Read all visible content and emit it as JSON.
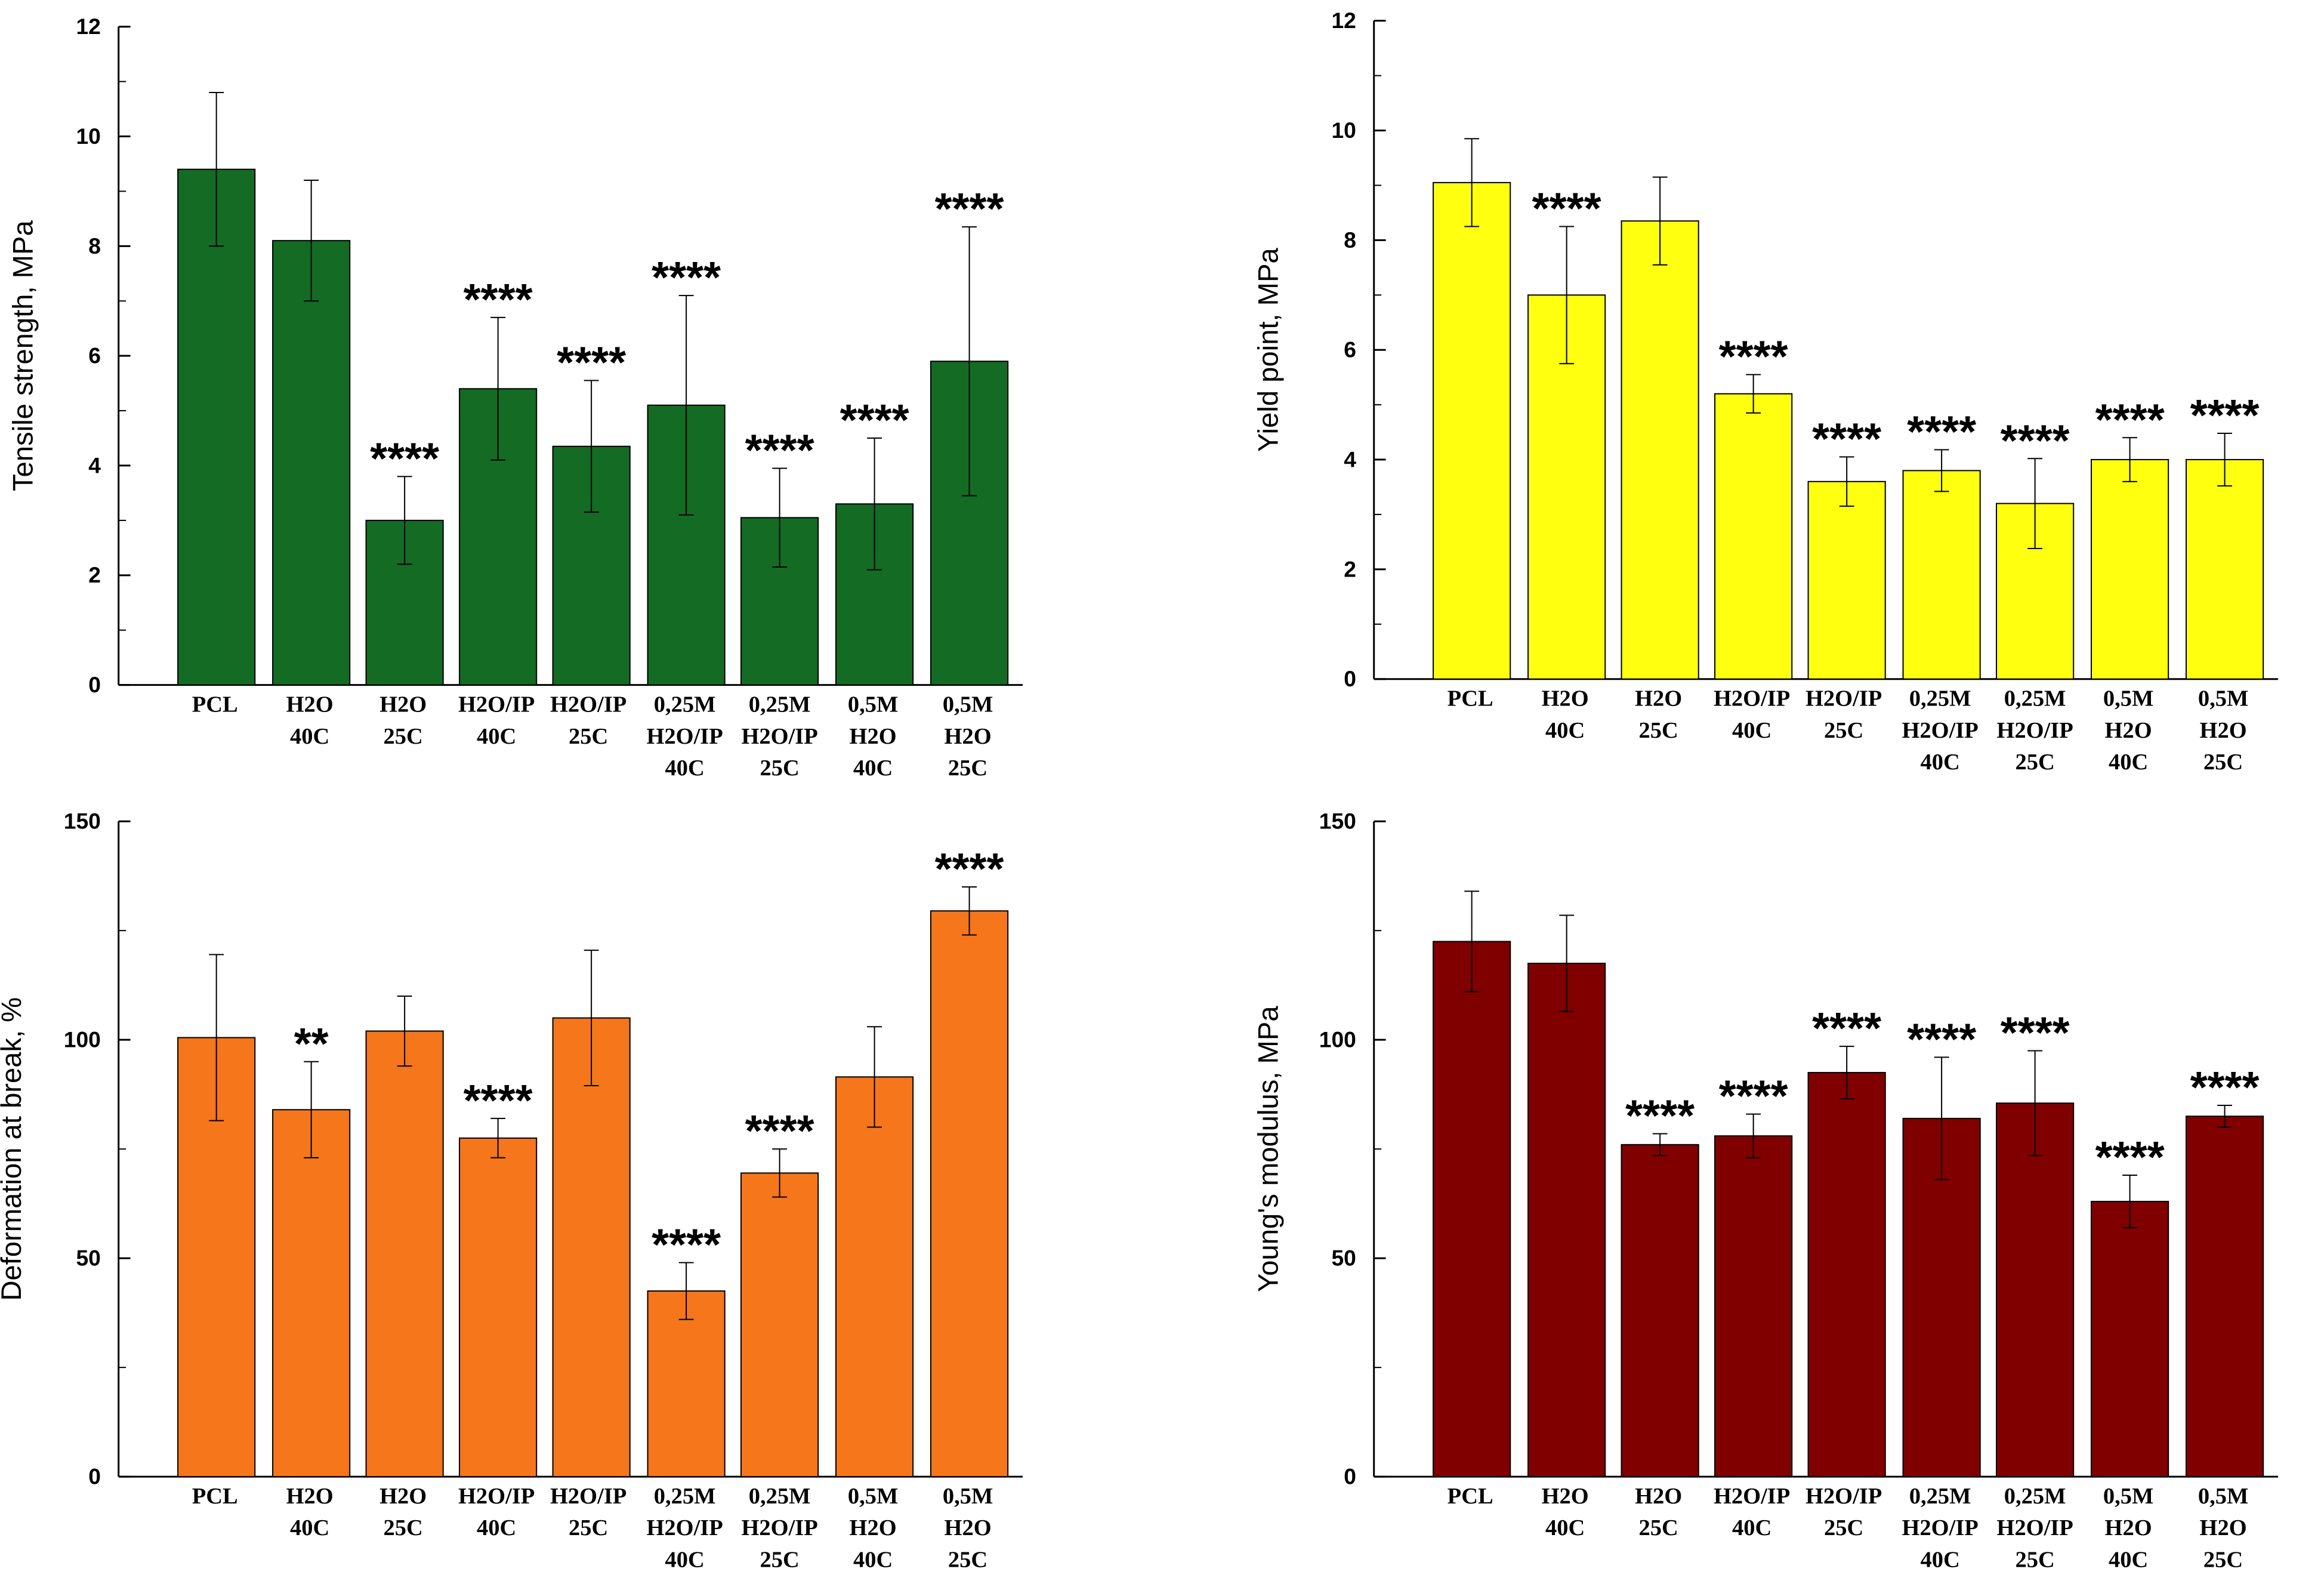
{
  "chart_data": [
    {
      "type": "bar",
      "ylabel": "Tensile strength, MPa",
      "ylim": [
        0,
        12
      ],
      "yticks": [
        0,
        2,
        4,
        6,
        8,
        10,
        12
      ],
      "categories": [
        [
          "PCL"
        ],
        [
          "H2O",
          "40C"
        ],
        [
          "H2O",
          "25C"
        ],
        [
          "H2O/IP",
          "40C"
        ],
        [
          "H2O/IP",
          "25C"
        ],
        [
          "0,25M",
          "H2O/IP",
          "40C"
        ],
        [
          "0,25M",
          "H2O/IP",
          "25C"
        ],
        [
          "0,5M",
          "H2O",
          "40C"
        ],
        [
          "0,5M",
          "H2O",
          "25C"
        ]
      ],
      "values": [
        9.4,
        8.1,
        3.0,
        5.4,
        4.35,
        5.1,
        3.05,
        3.3,
        5.9
      ],
      "errors": [
        1.4,
        1.1,
        0.8,
        1.3,
        1.2,
        2.0,
        0.9,
        1.2,
        2.45
      ],
      "annotations": [
        "",
        "",
        "****",
        "****",
        "****",
        "****",
        "****",
        "****",
        "****"
      ],
      "color": "#136b24"
    },
    {
      "type": "bar",
      "ylabel": "Yield point, MPa",
      "ylim": [
        0,
        12
      ],
      "yticks": [
        0,
        2,
        4,
        6,
        8,
        10,
        12
      ],
      "categories": [
        [
          "PCL"
        ],
        [
          "H2O",
          "40C"
        ],
        [
          "H2O",
          "25C"
        ],
        [
          "H2O/IP",
          "40C"
        ],
        [
          "H2O/IP",
          "25C"
        ],
        [
          "0,25M",
          "H2O/IP",
          "40C"
        ],
        [
          "0,25M",
          "H2O/IP",
          "25C"
        ],
        [
          "0,5M",
          "H2O",
          "40C"
        ],
        [
          "0,5M",
          "H2O",
          "25C"
        ]
      ],
      "values": [
        9.05,
        7.0,
        8.35,
        5.2,
        3.6,
        3.8,
        3.2,
        4.0,
        4.0
      ],
      "errors": [
        0.8,
        1.25,
        0.8,
        0.35,
        0.45,
        0.38,
        0.82,
        0.4,
        0.48
      ],
      "annotations": [
        "",
        "****",
        "",
        "****",
        "****",
        "****",
        "****",
        "****",
        "****"
      ],
      "color": "#ffff10"
    },
    {
      "type": "bar",
      "ylabel": "Deformation at break, %",
      "ylim": [
        0,
        150
      ],
      "yticks": [
        0,
        50,
        100,
        150
      ],
      "categories": [
        [
          "PCL"
        ],
        [
          "H2O",
          "40C"
        ],
        [
          "H2O",
          "25C"
        ],
        [
          "H2O/IP",
          "40C"
        ],
        [
          "H2O/IP",
          "25C"
        ],
        [
          "0,25M",
          "H2O/IP",
          "40C"
        ],
        [
          "0,25M",
          "H2O/IP",
          "25C"
        ],
        [
          "0,5M",
          "H2O",
          "40C"
        ],
        [
          "0,5M",
          "H2O",
          "25C"
        ]
      ],
      "values": [
        100.5,
        84,
        102,
        77.5,
        105,
        42.5,
        69.5,
        91.5,
        129.5
      ],
      "errors": [
        19,
        11,
        8,
        4.5,
        15.5,
        6.5,
        5.5,
        11.5,
        5.5
      ],
      "annotations": [
        "",
        "**",
        "",
        "****",
        "",
        "****",
        "****",
        "",
        "****"
      ],
      "color": "#f5761b"
    },
    {
      "type": "bar",
      "ylabel": "Young's modulus, MPa",
      "ylim": [
        0,
        150
      ],
      "yticks": [
        0,
        50,
        100,
        150
      ],
      "categories": [
        [
          "PCL"
        ],
        [
          "H2O",
          "40C"
        ],
        [
          "H2O",
          "25C"
        ],
        [
          "H2O/IP",
          "40C"
        ],
        [
          "H2O/IP",
          "25C"
        ],
        [
          "0,25M",
          "H2O/IP",
          "40C"
        ],
        [
          "0,25M",
          "H2O/IP",
          "25C"
        ],
        [
          "0,5M",
          "H2O",
          "40C"
        ],
        [
          "0,5M",
          "H2O",
          "25C"
        ]
      ],
      "values": [
        122.5,
        117.5,
        76,
        78,
        92.5,
        82,
        85.5,
        63,
        82.5
      ],
      "errors": [
        11.5,
        11,
        2.5,
        5,
        6,
        14,
        12,
        6,
        2.5
      ],
      "annotations": [
        "",
        "",
        "****",
        "****",
        "****",
        "****",
        "****",
        "****",
        "****"
      ],
      "color": "#800000"
    }
  ]
}
